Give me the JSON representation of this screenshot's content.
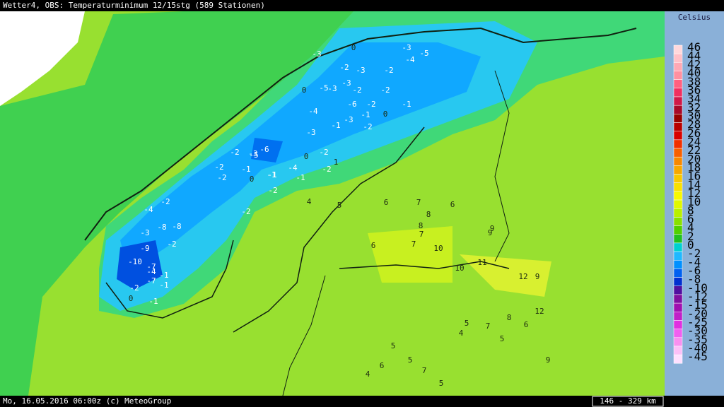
{
  "header": {
    "title": "Wetter4, OBS: Temperaturminimum 12/15stg (589 Stationen)"
  },
  "footer": {
    "text": "Mo, 16.05.2016 06:00z (c) MeteoGroup",
    "scale": "146 - 329 km"
  },
  "legend": {
    "title": "Celsius",
    "items": [
      {
        "value": 46,
        "color": "#ffd8dc"
      },
      {
        "value": 44,
        "color": "#ffc0c8"
      },
      {
        "value": 42,
        "color": "#ffa8b4"
      },
      {
        "value": 40,
        "color": "#ff90a0"
      },
      {
        "value": 38,
        "color": "#ff6080"
      },
      {
        "value": 36,
        "color": "#f03060"
      },
      {
        "value": 34,
        "color": "#d01848"
      },
      {
        "value": 32,
        "color": "#a80828"
      },
      {
        "value": 30,
        "color": "#980000"
      },
      {
        "value": 28,
        "color": "#b80000"
      },
      {
        "value": 26,
        "color": "#d80000"
      },
      {
        "value": 24,
        "color": "#f03000"
      },
      {
        "value": 22,
        "color": "#f86000"
      },
      {
        "value": 20,
        "color": "#f88800"
      },
      {
        "value": 18,
        "color": "#f8a800"
      },
      {
        "value": 16,
        "color": "#f8c800"
      },
      {
        "value": 14,
        "color": "#f8e000"
      },
      {
        "value": 12,
        "color": "#f8f800"
      },
      {
        "value": 10,
        "color": "#e0f800"
      },
      {
        "value": 8,
        "color": "#b8f000"
      },
      {
        "value": 6,
        "color": "#88e000"
      },
      {
        "value": 4,
        "color": "#50d000"
      },
      {
        "value": 2,
        "color": "#20c020"
      },
      {
        "value": 0,
        "color": "#00d0d0"
      },
      {
        "value": -2,
        "color": "#20b8ff"
      },
      {
        "value": -4,
        "color": "#0090ff"
      },
      {
        "value": -6,
        "color": "#0060f0"
      },
      {
        "value": -8,
        "color": "#0030d0"
      },
      {
        "value": -10,
        "color": "#5010a0"
      },
      {
        "value": -12,
        "color": "#8010a0"
      },
      {
        "value": -15,
        "color": "#a010b0"
      },
      {
        "value": -20,
        "color": "#c020c8"
      },
      {
        "value": -25,
        "color": "#e030e0"
      },
      {
        "value": -30,
        "color": "#f060f0"
      },
      {
        "value": -35,
        "color": "#f890f0"
      },
      {
        "value": -40,
        "color": "#fcc0f8"
      },
      {
        "value": -45,
        "color": "#ffe0ff"
      }
    ]
  },
  "stations": [
    -3,
    0,
    -2,
    -3,
    -3,
    -5,
    -4,
    -2,
    -3,
    -2,
    0,
    -5,
    -3,
    -2,
    -6,
    -2,
    -1,
    0,
    -4,
    -1,
    -3,
    -1,
    -2,
    -3,
    -6,
    -2,
    -3,
    -4,
    -1,
    0,
    -2,
    1,
    -2,
    -1,
    -2,
    -1,
    -2,
    -1,
    0,
    -2,
    -2,
    -4,
    -2,
    -5,
    -3,
    -8,
    -9,
    -7,
    -10,
    -7,
    -8,
    -2,
    -4,
    -1,
    0,
    -1,
    -2,
    -1,
    4,
    5,
    6,
    7,
    6,
    8,
    8,
    7,
    9,
    10,
    9,
    11,
    12,
    12,
    9,
    8,
    7,
    6,
    5,
    5,
    4,
    10,
    6,
    7,
    5,
    9,
    5,
    6,
    7,
    4,
    5
  ]
}
